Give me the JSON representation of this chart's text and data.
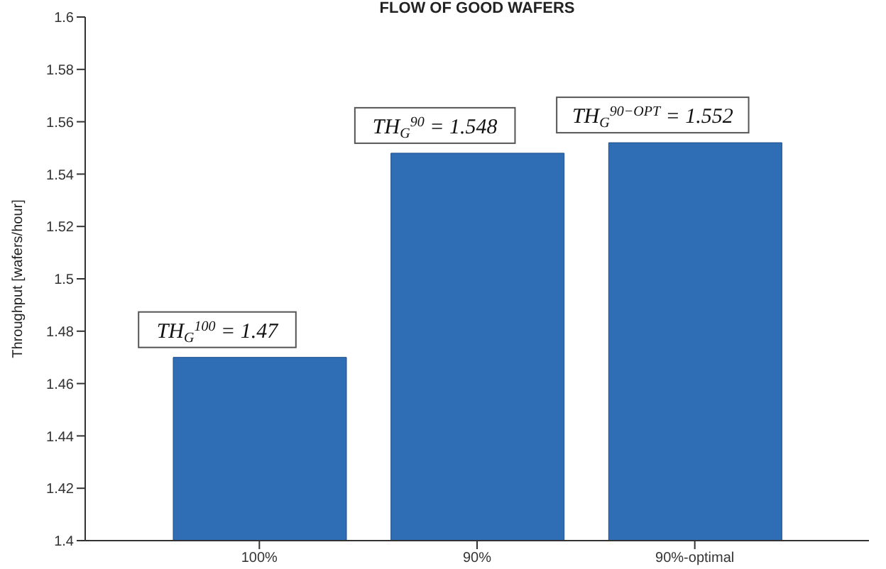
{
  "chart_data": {
    "type": "bar",
    "title": "FLOW OF GOOD WAFERS",
    "ylabel": "Throughput [wafers/hour]",
    "categories": [
      "100%",
      "90%",
      "90%-optimal"
    ],
    "values": [
      1.47,
      1.548,
      1.552
    ],
    "value_labels": [
      "TH$_{G}$$^{100}$ = 1.47",
      "TH$_{G}$$^{90}$ = 1.548",
      "TH$_{G}$$^{90−OPT}$ = 1.552"
    ],
    "color": "#2f6db5",
    "ylim": [
      1.4,
      1.6
    ],
    "yticks": [
      1.4,
      1.42,
      1.44,
      1.46,
      1.48,
      1.5,
      1.52,
      1.54,
      1.56,
      1.58,
      1.6
    ],
    "grid": false,
    "legend": false
  }
}
